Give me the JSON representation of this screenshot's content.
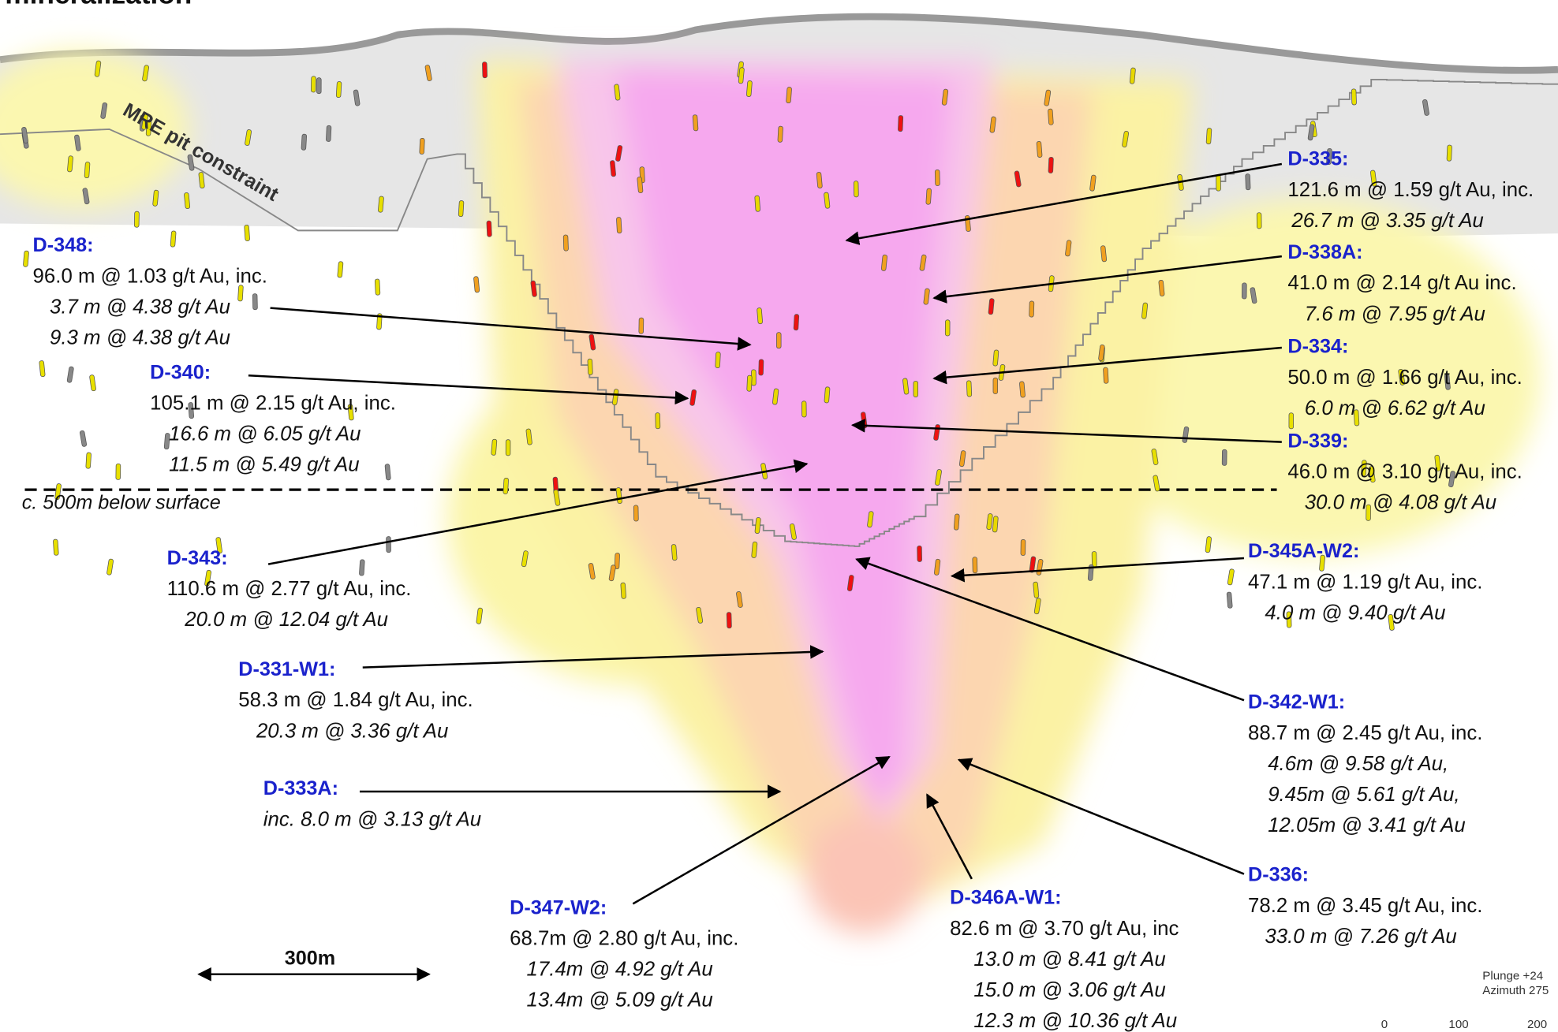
{
  "title": "mineralization",
  "pit_label": "MRE pit constraint",
  "depth_label": "c. 500m below surface",
  "scale_label": "300m",
  "orientation": [
    "Plunge +24",
    "Azimuth 275"
  ],
  "scale_ticks": [
    "0",
    "100",
    "200"
  ],
  "annotations": [
    {
      "id": "D-348:",
      "lines": [
        "96.0 m @ 1.03 g/t Au, inc.",
        "3.7 m @ 4.38 g/t Au",
        "9.3 m @ 4.38 g/t Au"
      ]
    },
    {
      "id": "D-340:",
      "lines": [
        "105.1 m @ 2.15 g/t Au, inc.",
        "16.6 m @ 6.05 g/t Au",
        "11.5 m @ 5.49 g/t Au"
      ]
    },
    {
      "id": "D-343:",
      "lines": [
        "110.6 m @ 2.77 g/t Au, inc.",
        "20.0 m @ 12.04 g/t Au"
      ]
    },
    {
      "id": "D-331-W1:",
      "lines": [
        "58.3 m @ 1.84 g/t Au, inc.",
        "20.3 m @ 3.36 g/t Au"
      ]
    },
    {
      "id": "D-333A:",
      "lines": [
        "inc. 8.0 m @ 3.13 g/t Au"
      ]
    },
    {
      "id": "D-347-W2:",
      "lines": [
        "68.7m @ 2.80 g/t Au, inc.",
        "17.4m @ 4.92 g/t Au",
        "13.4m @ 5.09 g/t Au"
      ]
    },
    {
      "id": "D-346A-W1:",
      "lines": [
        "82.6 m @ 3.70 g/t Au, inc",
        "13.0 m @ 8.41 g/t Au",
        "15.0 m @ 3.06 g/t Au",
        "12.3 m @ 10.36 g/t Au"
      ]
    },
    {
      "id": "D-336:",
      "lines": [
        "78.2 m @ 3.45 g/t Au, inc.",
        "33.0 m @ 7.26 g/t Au"
      ]
    },
    {
      "id": "D-342-W1:",
      "lines": [
        "88.7 m @ 2.45 g/t Au, inc.",
        "4.6m @ 9.58 g/t Au,",
        "9.45m @ 5.61 g/t Au,",
        "12.05m @ 3.41 g/t Au"
      ]
    },
    {
      "id": "D-345A-W2:",
      "lines": [
        "47.1 m @ 1.19 g/t Au, inc.",
        "4.0 m @ 9.40 g/t Au"
      ]
    },
    {
      "id": "D-339:",
      "lines": [
        "46.0 m @ 3.10 g/t Au, inc.",
        "30.0 m @ 4.08 g/t Au"
      ]
    },
    {
      "id": "D-334:",
      "lines": [
        "50.0 m @ 1.66 g/t Au, inc.",
        "6.0 m @ 6.62 g/t Au"
      ]
    },
    {
      "id": "D-338A:",
      "lines": [
        "41.0 m @ 2.14 g/t Au inc.",
        "7.6 m @ 7.95 g/t Au"
      ]
    },
    {
      "id": "D-335:",
      "lines": [
        "121.6 m @ 1.59 g/t Au, inc.",
        "26.7 m @ 3.35 g/t Au"
      ]
    }
  ]
}
